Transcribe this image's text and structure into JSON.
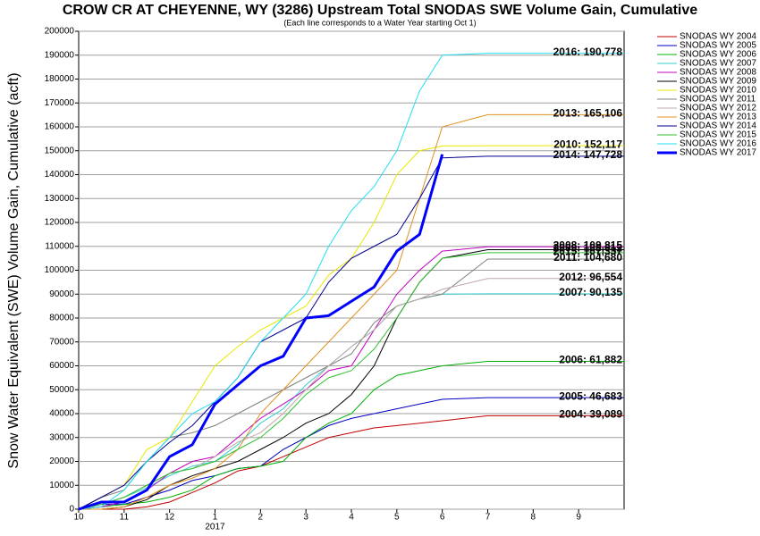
{
  "chart_data": {
    "type": "line",
    "title": "CROW CR AT CHEYENNE, WY (3286) Upstream Total SNODAS SWE Volume Gain, Cumulative",
    "subtitle": "(Each line corresponds to a Water Year starting Oct 1)",
    "y_label": "Snow Water Equivalent (SWE) Volume Gain, Cumulative (acft)",
    "x_year_label": "2017",
    "x": [
      0,
      0.5,
      1,
      1.5,
      2,
      2.5,
      3,
      3.5,
      4,
      4.5,
      5,
      5.5,
      6,
      6.5,
      7,
      7.5,
      8,
      9,
      10,
      11,
      12
    ],
    "xlim": [
      0,
      12
    ],
    "xticks": [
      {
        "value": 0,
        "label": "10"
      },
      {
        "value": 1,
        "label": "11"
      },
      {
        "value": 2,
        "label": "12"
      },
      {
        "value": 3,
        "label": "1"
      },
      {
        "value": 4,
        "label": "2"
      },
      {
        "value": 5,
        "label": "3"
      },
      {
        "value": 6,
        "label": "4"
      },
      {
        "value": 7,
        "label": "5"
      },
      {
        "value": 8,
        "label": "6"
      },
      {
        "value": 9,
        "label": "7"
      },
      {
        "value": 10,
        "label": "8"
      },
      {
        "value": 11,
        "label": "9"
      }
    ],
    "ylim": [
      0,
      200000
    ],
    "yticks": [
      0,
      10000,
      20000,
      30000,
      40000,
      50000,
      60000,
      70000,
      80000,
      90000,
      100000,
      110000,
      120000,
      130000,
      140000,
      150000,
      160000,
      170000,
      180000,
      190000,
      200000
    ],
    "grid": true,
    "legend": "right",
    "series": [
      {
        "name": "SNODAS WY 2004",
        "color": "#c00000",
        "end_label": "2004: 39,089",
        "values": [
          0,
          0,
          0,
          1000,
          3000,
          7000,
          11000,
          16000,
          18000,
          22000,
          26000,
          30000,
          32000,
          34000,
          35000,
          36000,
          37000,
          39089,
          39089,
          39089,
          39089
        ]
      },
      {
        "name": "SNODAS WY 2005",
        "color": "#0000c0",
        "end_label": "2005: 46,683",
        "values": [
          0,
          2000,
          2000,
          5000,
          8000,
          12000,
          14000,
          17000,
          18000,
          25000,
          30000,
          35000,
          38000,
          40000,
          42000,
          44000,
          46000,
          46683,
          46683,
          46683,
          46683
        ]
      },
      {
        "name": "SNODAS WY 2006",
        "color": "#00b000",
        "end_label": "2006: 61,882",
        "values": [
          0,
          1000,
          2000,
          3000,
          5000,
          8000,
          14000,
          17000,
          18000,
          20000,
          30000,
          36000,
          40000,
          50000,
          56000,
          58000,
          60000,
          61882,
          61882,
          61882,
          61882
        ]
      },
      {
        "name": "SNODAS WY 2007",
        "color": "#30d0d0",
        "end_label": "2007: 90,135",
        "values": [
          0,
          2000,
          5000,
          9000,
          14000,
          18000,
          20000,
          27000,
          36000,
          42000,
          52000,
          60000,
          68000,
          75000,
          85000,
          88000,
          90000,
          90135,
          90135,
          90135,
          90135
        ]
      },
      {
        "name": "SNODAS WY 2008",
        "color": "#c000c0",
        "end_label": "2008: 109,815",
        "values": [
          0,
          1000,
          3000,
          8000,
          15000,
          20000,
          22000,
          30000,
          38000,
          44000,
          50000,
          58000,
          60000,
          75000,
          90000,
          100000,
          108000,
          109815,
          109815,
          109815,
          109815
        ]
      },
      {
        "name": "SNODAS WY 2009",
        "color": "#000000",
        "end_label": "2009: 108,612",
        "values": [
          0,
          0,
          1000,
          4000,
          10000,
          14000,
          17000,
          20000,
          25000,
          30000,
          36000,
          40000,
          48000,
          60000,
          80000,
          95000,
          105000,
          108612,
          108612,
          108612,
          108612
        ]
      },
      {
        "name": "SNODAS WY 2010",
        "color": "#e8e800",
        "end_label": "2010: 152,117",
        "values": [
          0,
          5000,
          10000,
          25000,
          30000,
          45000,
          60000,
          68000,
          75000,
          80000,
          85000,
          98000,
          105000,
          120000,
          140000,
          150000,
          152000,
          152117,
          152117,
          152117,
          152117
        ]
      },
      {
        "name": "SNODAS WY 2011",
        "color": "#808080",
        "end_label": "2011: 104,680",
        "values": [
          0,
          5000,
          8000,
          20000,
          30000,
          32000,
          35000,
          40000,
          45000,
          50000,
          55000,
          60000,
          65000,
          78000,
          85000,
          88000,
          90000,
          104680,
          104680,
          104680,
          104680
        ]
      },
      {
        "name": "SNODAS WY 2012",
        "color": "#c0a8a8",
        "end_label": "2012: 96,554",
        "values": [
          0,
          2000,
          5000,
          10000,
          15000,
          17000,
          22000,
          28000,
          32000,
          40000,
          50000,
          60000,
          68000,
          75000,
          85000,
          88000,
          92000,
          96554,
          96554,
          96554,
          96554
        ]
      },
      {
        "name": "SNODAS WY 2013",
        "color": "#e09020",
        "end_label": "2013: 165,106",
        "values": [
          0,
          0,
          1000,
          5000,
          10000,
          13000,
          17000,
          25000,
          40000,
          50000,
          60000,
          70000,
          80000,
          90000,
          100000,
          130000,
          160000,
          165106,
          165106,
          165106,
          165106
        ]
      },
      {
        "name": "SNODAS WY 2014",
        "color": "#000090",
        "end_label": "2014: 147,728",
        "values": [
          0,
          5000,
          10000,
          20000,
          28000,
          35000,
          45000,
          55000,
          70000,
          75000,
          80000,
          95000,
          105000,
          110000,
          115000,
          130000,
          147000,
          147728,
          147728,
          147728,
          147728
        ]
      },
      {
        "name": "SNODAS WY 2015",
        "color": "#30c030",
        "end_label": "2015: 107,337",
        "values": [
          0,
          2000,
          5000,
          10000,
          15000,
          17000,
          20000,
          25000,
          30000,
          38000,
          48000,
          55000,
          58000,
          67000,
          80000,
          95000,
          105000,
          107337,
          107337,
          107337,
          107337
        ]
      },
      {
        "name": "SNODAS WY 2016",
        "color": "#20e0f0",
        "end_label": "2016: 190,778",
        "values": [
          0,
          1000,
          8000,
          20000,
          30000,
          40000,
          45000,
          55000,
          70000,
          80000,
          90000,
          110000,
          125000,
          135000,
          150000,
          175000,
          190000,
          190778,
          190778,
          190778,
          190778
        ]
      },
      {
        "name": "SNODAS WY 2017",
        "color": "#0000ff",
        "line_width": 3,
        "values": [
          0,
          3000,
          3000,
          8000,
          22000,
          27000,
          44000,
          52000,
          60000,
          64000,
          80000,
          81000,
          87000,
          93000,
          108000,
          115000,
          148500,
          null,
          null,
          null,
          null
        ]
      }
    ]
  }
}
